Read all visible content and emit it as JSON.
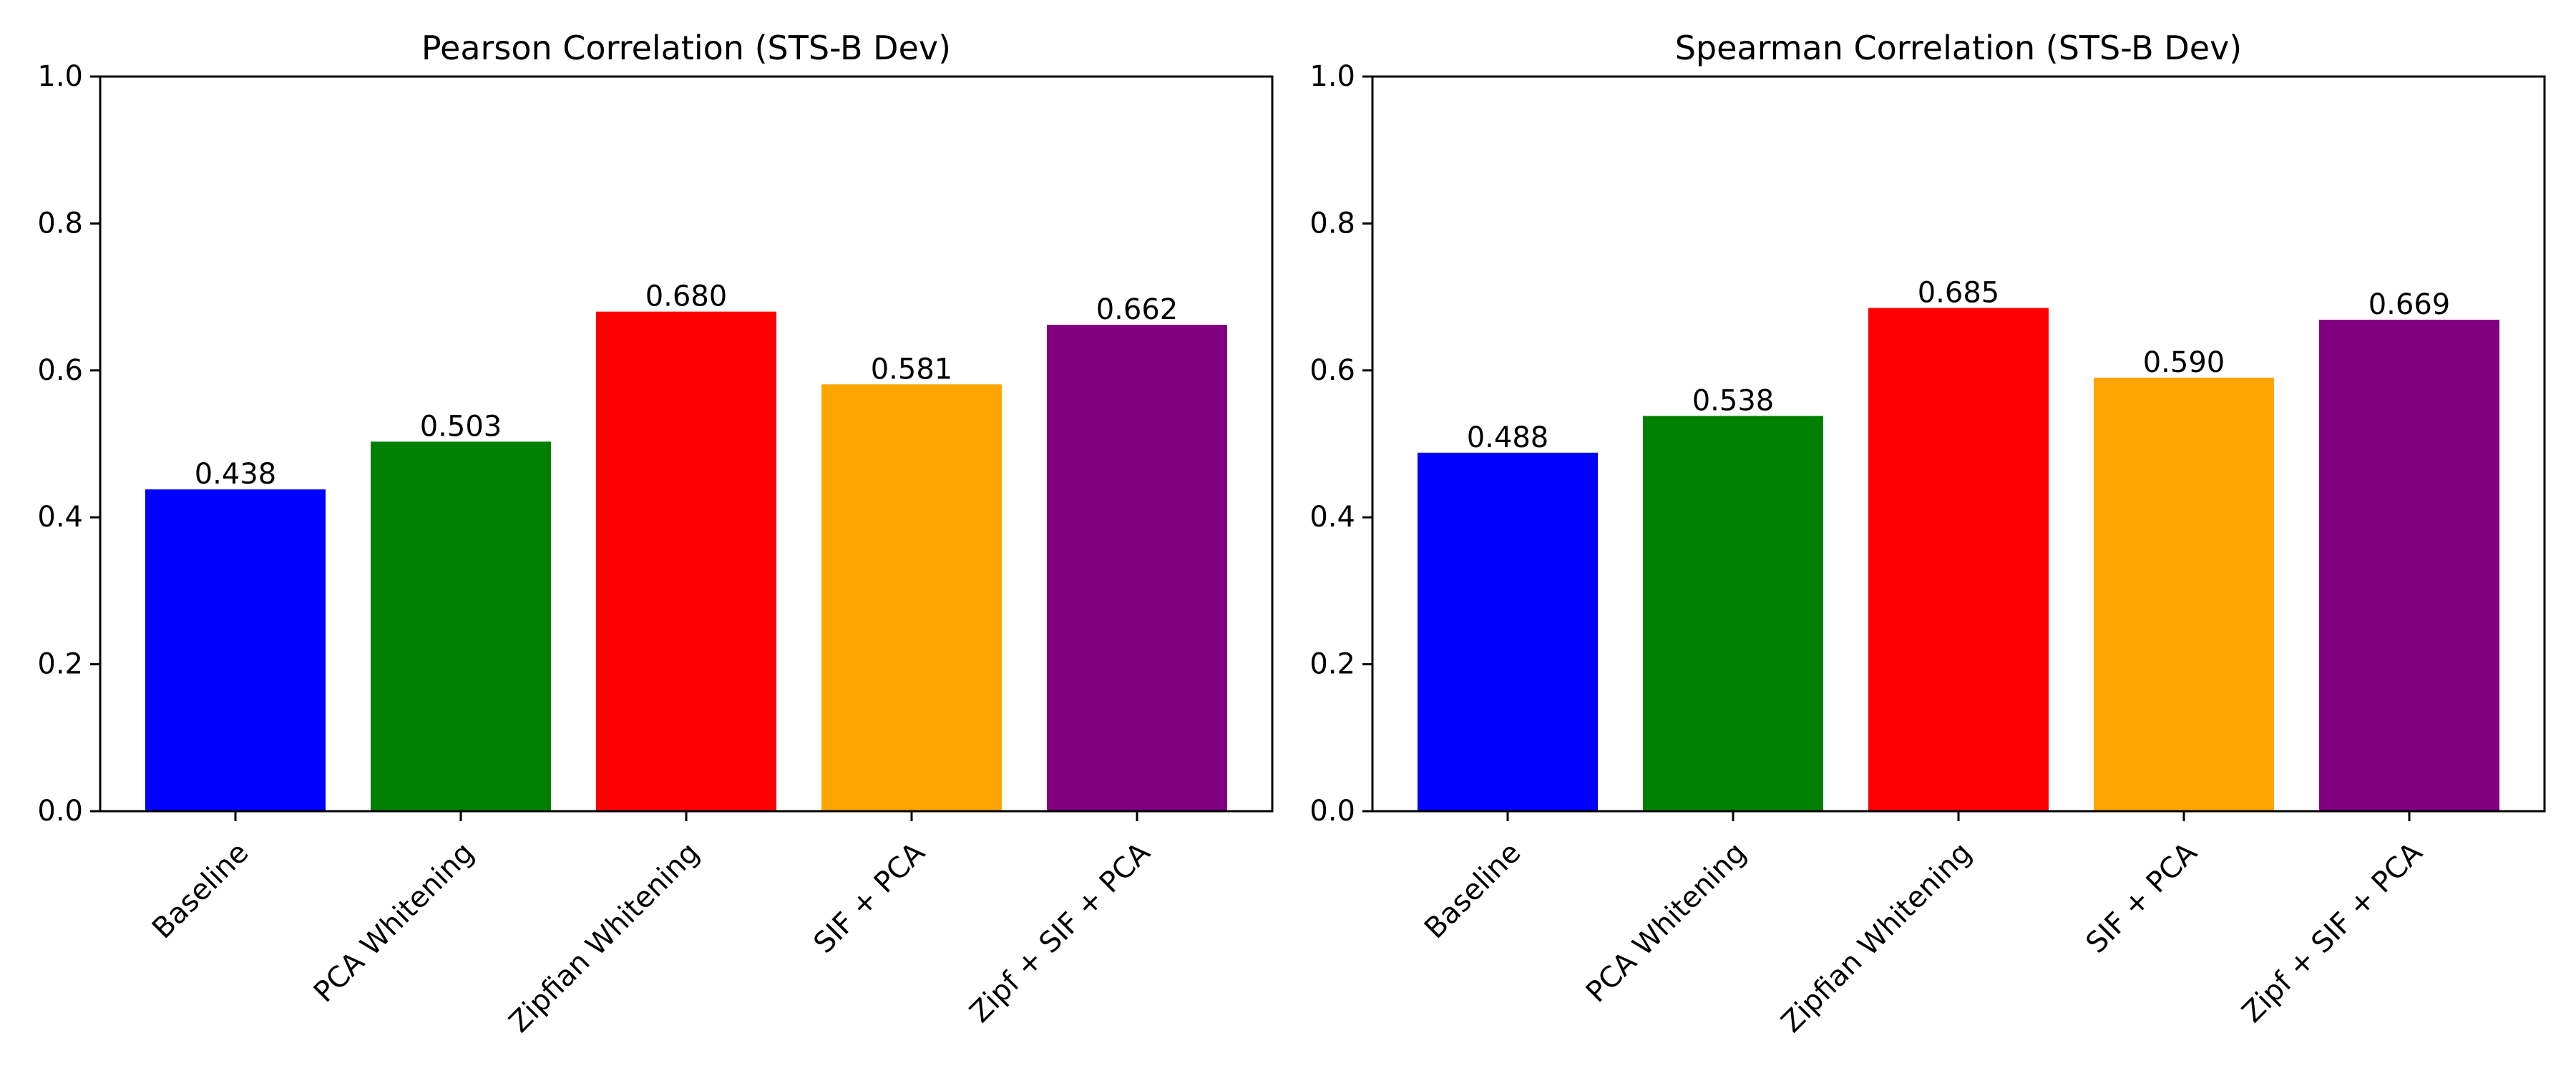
{
  "chart_data": [
    {
      "type": "bar",
      "title": "Pearson Correlation (STS-B Dev)",
      "xlabel": "",
      "ylabel": "",
      "categories": [
        "Baseline",
        "PCA Whitening",
        "Zipfian Whitening",
        "SIF + PCA",
        "Zipf + SIF + PCA"
      ],
      "values": [
        0.438,
        0.503,
        0.68,
        0.581,
        0.662
      ],
      "value_labels": [
        "0.438",
        "0.503",
        "0.680",
        "0.581",
        "0.662"
      ],
      "colors": [
        "#0000ff",
        "#008000",
        "#ff0000",
        "#ffa500",
        "#800080"
      ],
      "ylim": [
        0.0,
        1.0
      ],
      "yticks": [
        0.0,
        0.2,
        0.4,
        0.6,
        0.8,
        1.0
      ],
      "ytick_labels": [
        "0.0",
        "0.2",
        "0.4",
        "0.6",
        "0.8",
        "1.0"
      ],
      "grid": false,
      "legend": "none"
    },
    {
      "type": "bar",
      "title": "Spearman Correlation (STS-B Dev)",
      "xlabel": "",
      "ylabel": "",
      "categories": [
        "Baseline",
        "PCA Whitening",
        "Zipfian Whitening",
        "SIF + PCA",
        "Zipf + SIF + PCA"
      ],
      "values": [
        0.488,
        0.538,
        0.685,
        0.59,
        0.669
      ],
      "value_labels": [
        "0.488",
        "0.538",
        "0.685",
        "0.590",
        "0.669"
      ],
      "colors": [
        "#0000ff",
        "#008000",
        "#ff0000",
        "#ffa500",
        "#800080"
      ],
      "ylim": [
        0.0,
        1.0
      ],
      "yticks": [
        0.0,
        0.2,
        0.4,
        0.6,
        0.8,
        1.0
      ],
      "ytick_labels": [
        "0.0",
        "0.2",
        "0.4",
        "0.6",
        "0.8",
        "1.0"
      ],
      "grid": false,
      "legend": "none"
    }
  ]
}
